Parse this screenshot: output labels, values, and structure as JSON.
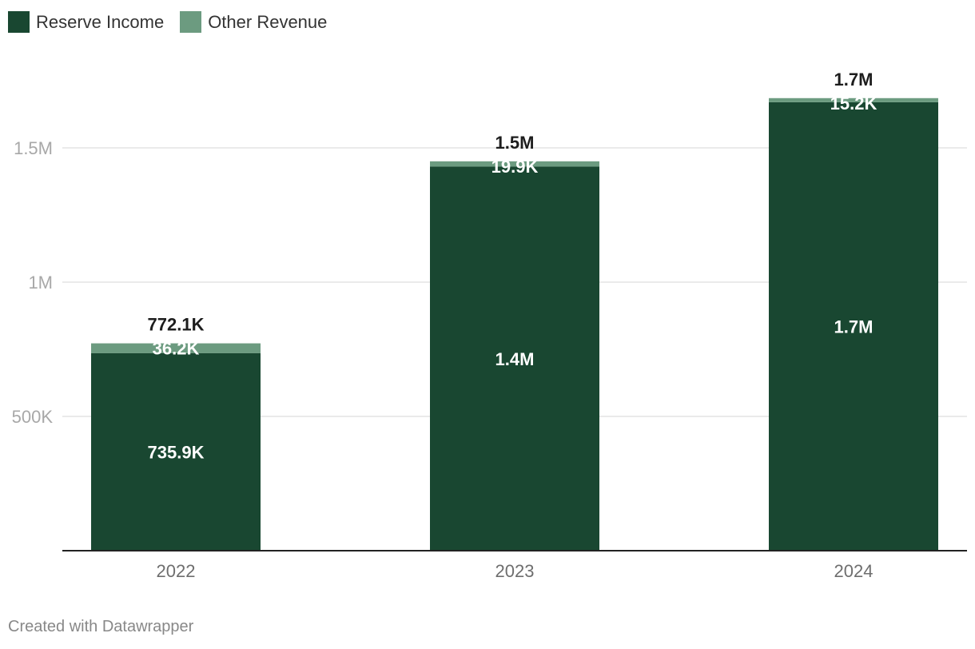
{
  "legend": {
    "items": [
      {
        "label": "Reserve Income",
        "color": "#194731"
      },
      {
        "label": "Other Revenue",
        "color": "#6c9b80"
      }
    ]
  },
  "chart_data": {
    "type": "bar",
    "stacked": true,
    "categories": [
      "2022",
      "2023",
      "2024"
    ],
    "series": [
      {
        "name": "Reserve Income",
        "color": "#194731",
        "values": [
          735900,
          1430000,
          1670000
        ],
        "labels": [
          "735.9K",
          "1.4M",
          "1.7M"
        ]
      },
      {
        "name": "Other Revenue",
        "color": "#6c9b80",
        "values": [
          36200,
          19900,
          15200
        ],
        "labels": [
          "36.2K",
          "19.9K",
          "15.2K"
        ]
      }
    ],
    "totals": [
      "772.1K",
      "1.5M",
      "1.7M"
    ],
    "y_ticks": [
      {
        "value": 500000,
        "label": "500K"
      },
      {
        "value": 1000000,
        "label": "1M"
      },
      {
        "value": 1500000,
        "label": "1.5M"
      }
    ],
    "ylim": [
      0,
      1800000
    ],
    "grid": true,
    "legend_position": "top-left"
  },
  "footer": {
    "credit": "Created with Datawrapper"
  }
}
